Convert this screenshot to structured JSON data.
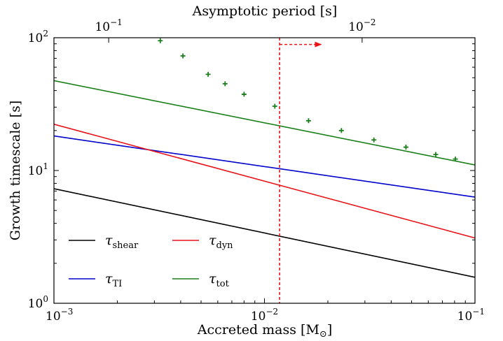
{
  "chart_data": {
    "type": "line",
    "xlabel": "Accreted mass [M",
    "xlabel_symbol": "⊙",
    "xlabel_suffix": "]",
    "ylabel": "Growth timescale [s]",
    "top_xlabel": "Asymptotic period [s]",
    "x_scale": "log",
    "y_scale": "log",
    "xlim": [
      0.001,
      0.1
    ],
    "ylim": [
      1,
      100
    ],
    "x_ticks": [
      {
        "value": 0.001,
        "base": "10",
        "exp": "−3"
      },
      {
        "value": 0.01,
        "base": "10",
        "exp": "−2"
      },
      {
        "value": 0.1,
        "base": "10",
        "exp": "−1"
      }
    ],
    "y_ticks": [
      {
        "value": 1,
        "base": "10",
        "exp": "0"
      },
      {
        "value": 10,
        "base": "10",
        "exp": "1"
      },
      {
        "value": 100,
        "base": "10",
        "exp": "2"
      }
    ],
    "top_ticks": [
      {
        "period": 0.1,
        "x_value": 0.00182,
        "base": "10",
        "exp": "−1"
      },
      {
        "period": 0.01,
        "x_value": 0.0291,
        "base": "10",
        "exp": "−2"
      }
    ],
    "series": [
      {
        "name": "τ",
        "sub": "shear",
        "color": "#000000",
        "x": [
          0.001,
          0.1
        ],
        "y": [
          7.3,
          1.57
        ]
      },
      {
        "name": "τ",
        "sub": "TI",
        "color": "#0000cc",
        "x": [
          0.001,
          0.1
        ],
        "y": [
          18.2,
          6.3
        ]
      },
      {
        "name": "τ",
        "sub": "dyn",
        "color": "#e8141a",
        "x": [
          0.001,
          0.1
        ],
        "y": [
          22.3,
          3.1
        ]
      },
      {
        "name": "τ",
        "sub": "tot",
        "color": "#1a7f1a",
        "x": [
          0.001,
          0.1
        ],
        "y": [
          47.5,
          11.0
        ]
      }
    ],
    "markers": {
      "color": "#1a7f1a",
      "points": [
        {
          "x": 0.0032,
          "y": 95
        },
        {
          "x": 0.0041,
          "y": 73
        },
        {
          "x": 0.0054,
          "y": 53
        },
        {
          "x": 0.0065,
          "y": 45
        },
        {
          "x": 0.008,
          "y": 37.5
        },
        {
          "x": 0.0112,
          "y": 30.5
        },
        {
          "x": 0.0162,
          "y": 23.7
        },
        {
          "x": 0.0232,
          "y": 20.0
        },
        {
          "x": 0.0331,
          "y": 17.0
        },
        {
          "x": 0.047,
          "y": 15.0
        },
        {
          "x": 0.0651,
          "y": 13.2
        },
        {
          "x": 0.0807,
          "y": 12.2
        }
      ]
    },
    "threshold": {
      "x": 0.0118,
      "color": "#e8141a",
      "arrow_to_x": 0.0186,
      "arrow_y": 89
    },
    "legend_position": "lower-left",
    "grid": false
  }
}
